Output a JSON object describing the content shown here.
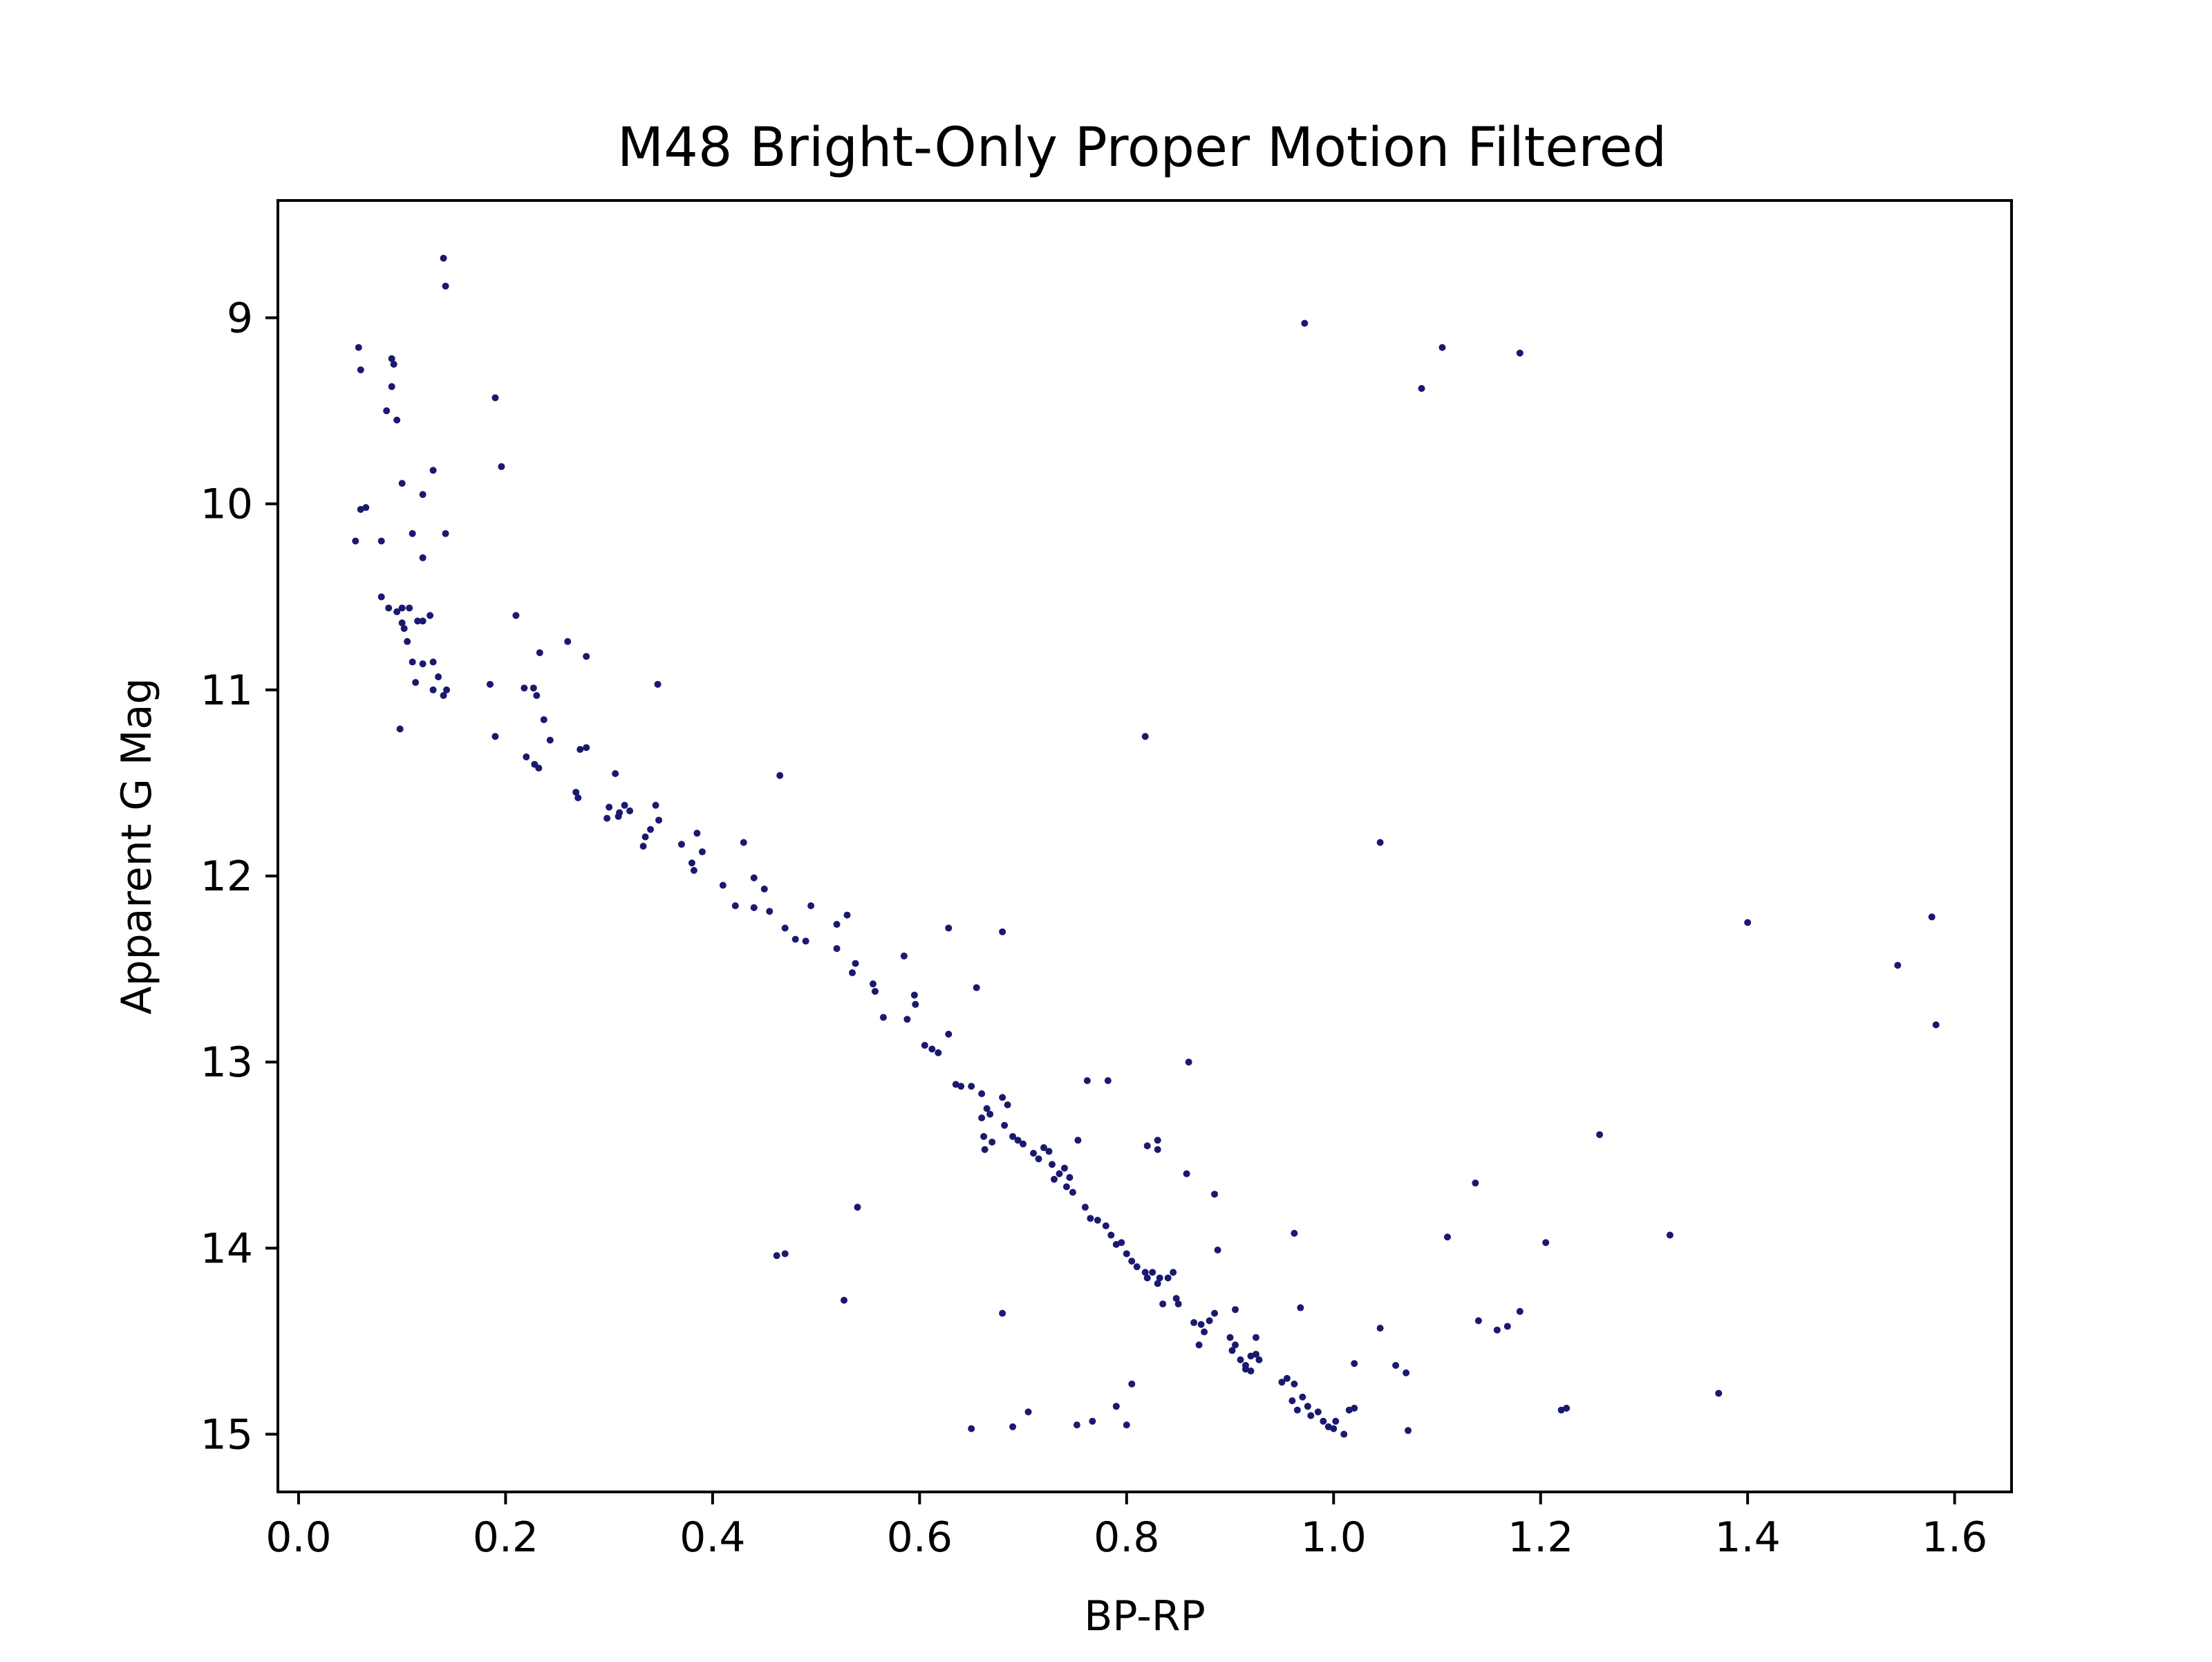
{
  "chart_data": {
    "type": "scatter",
    "title": "M48 Bright-Only Proper Motion Filtered",
    "xlabel": "BP-RP",
    "ylabel": "Apparent G Mag",
    "xlim": [
      -0.02,
      1.655
    ],
    "ylim": [
      15.31,
      8.37
    ],
    "y_inverted": true,
    "grid": false,
    "marker_color": "#191970",
    "x_ticks": [
      {
        "value": 0.0,
        "label": "0.0"
      },
      {
        "value": 0.2,
        "label": "0.2"
      },
      {
        "value": 0.4,
        "label": "0.4"
      },
      {
        "value": 0.6,
        "label": "0.6"
      },
      {
        "value": 0.8,
        "label": "0.8"
      },
      {
        "value": 1.0,
        "label": "1.0"
      },
      {
        "value": 1.2,
        "label": "1.2"
      },
      {
        "value": 1.4,
        "label": "1.4"
      },
      {
        "value": 1.6,
        "label": "1.6"
      }
    ],
    "y_ticks": [
      {
        "value": 9,
        "label": "9"
      },
      {
        "value": 10,
        "label": "10"
      },
      {
        "value": 11,
        "label": "11"
      },
      {
        "value": 12,
        "label": "12"
      },
      {
        "value": 13,
        "label": "13"
      },
      {
        "value": 14,
        "label": "14"
      },
      {
        "value": 15,
        "label": "15"
      }
    ],
    "points": [
      [
        0.14,
        8.68
      ],
      [
        0.142,
        8.83
      ],
      [
        0.058,
        9.16
      ],
      [
        0.09,
        9.22
      ],
      [
        0.092,
        9.25
      ],
      [
        0.06,
        9.28
      ],
      [
        0.09,
        9.37
      ],
      [
        0.19,
        9.43
      ],
      [
        0.085,
        9.5
      ],
      [
        0.095,
        9.55
      ],
      [
        0.196,
        9.8
      ],
      [
        0.13,
        9.82
      ],
      [
        0.1,
        9.89
      ],
      [
        0.12,
        9.95
      ],
      [
        0.065,
        10.02
      ],
      [
        0.06,
        10.03
      ],
      [
        0.11,
        10.16
      ],
      [
        0.142,
        10.16
      ],
      [
        0.055,
        10.2
      ],
      [
        0.08,
        10.2
      ],
      [
        0.12,
        10.29
      ],
      [
        0.08,
        10.5
      ],
      [
        0.087,
        10.56
      ],
      [
        0.1,
        10.56
      ],
      [
        0.107,
        10.56
      ],
      [
        0.095,
        10.58
      ],
      [
        0.127,
        10.6
      ],
      [
        0.1,
        10.64
      ],
      [
        0.115,
        10.63
      ],
      [
        0.12,
        10.63
      ],
      [
        0.102,
        10.67
      ],
      [
        0.105,
        10.74
      ],
      [
        0.11,
        10.85
      ],
      [
        0.12,
        10.86
      ],
      [
        0.13,
        10.85
      ],
      [
        0.135,
        10.93
      ],
      [
        0.113,
        10.96
      ],
      [
        0.13,
        11.0
      ],
      [
        0.14,
        11.03
      ],
      [
        0.143,
        11.0
      ],
      [
        0.098,
        11.21
      ],
      [
        0.21,
        10.6
      ],
      [
        0.26,
        10.74
      ],
      [
        0.233,
        10.8
      ],
      [
        0.278,
        10.82
      ],
      [
        0.185,
        10.97
      ],
      [
        0.218,
        10.99
      ],
      [
        0.227,
        10.99
      ],
      [
        0.23,
        11.03
      ],
      [
        0.347,
        10.97
      ],
      [
        0.237,
        11.16
      ],
      [
        0.19,
        11.25
      ],
      [
        0.243,
        11.27
      ],
      [
        0.22,
        11.36
      ],
      [
        0.228,
        11.4
      ],
      [
        0.232,
        11.42
      ],
      [
        0.278,
        11.31
      ],
      [
        0.272,
        11.32
      ],
      [
        0.306,
        11.45
      ],
      [
        0.268,
        11.55
      ],
      [
        0.27,
        11.58
      ],
      [
        0.3,
        11.63
      ],
      [
        0.31,
        11.66
      ],
      [
        0.315,
        11.62
      ],
      [
        0.32,
        11.65
      ],
      [
        0.298,
        11.69
      ],
      [
        0.309,
        11.68
      ],
      [
        0.345,
        11.62
      ],
      [
        0.348,
        11.7
      ],
      [
        0.34,
        11.75
      ],
      [
        0.335,
        11.79
      ],
      [
        0.333,
        11.84
      ],
      [
        0.37,
        11.83
      ],
      [
        0.385,
        11.77
      ],
      [
        0.38,
        11.93
      ],
      [
        0.382,
        11.97
      ],
      [
        0.39,
        11.87
      ],
      [
        0.43,
        11.82
      ],
      [
        0.465,
        11.46
      ],
      [
        0.41,
        12.05
      ],
      [
        0.44,
        12.01
      ],
      [
        0.45,
        12.07
      ],
      [
        0.422,
        12.16
      ],
      [
        0.44,
        12.17
      ],
      [
        0.455,
        12.19
      ],
      [
        0.47,
        12.28
      ],
      [
        0.48,
        12.34
      ],
      [
        0.49,
        12.35
      ],
      [
        0.495,
        12.16
      ],
      [
        0.52,
        12.26
      ],
      [
        0.53,
        12.21
      ],
      [
        0.52,
        12.39
      ],
      [
        0.538,
        12.47
      ],
      [
        0.535,
        12.52
      ],
      [
        0.555,
        12.58
      ],
      [
        0.557,
        12.62
      ],
      [
        0.565,
        12.76
      ],
      [
        0.585,
        12.43
      ],
      [
        0.595,
        12.64
      ],
      [
        0.596,
        12.69
      ],
      [
        0.588,
        12.77
      ],
      [
        0.628,
        12.28
      ],
      [
        0.655,
        12.6
      ],
      [
        0.628,
        12.85
      ],
      [
        0.605,
        12.91
      ],
      [
        0.612,
        12.93
      ],
      [
        0.618,
        12.95
      ],
      [
        0.635,
        13.12
      ],
      [
        0.64,
        13.13
      ],
      [
        0.65,
        13.13
      ],
      [
        0.68,
        12.3
      ],
      [
        0.66,
        13.17
      ],
      [
        0.665,
        13.25
      ],
      [
        0.668,
        13.28
      ],
      [
        0.66,
        13.3
      ],
      [
        0.662,
        13.4
      ],
      [
        0.663,
        13.47
      ],
      [
        0.67,
        13.43
      ],
      [
        0.68,
        13.19
      ],
      [
        0.685,
        13.23
      ],
      [
        0.682,
        13.34
      ],
      [
        0.69,
        13.4
      ],
      [
        0.695,
        13.42
      ],
      [
        0.7,
        13.44
      ],
      [
        0.71,
        13.49
      ],
      [
        0.715,
        13.52
      ],
      [
        0.72,
        13.46
      ],
      [
        0.725,
        13.48
      ],
      [
        0.728,
        13.55
      ],
      [
        0.735,
        13.6
      ],
      [
        0.73,
        13.63
      ],
      [
        0.74,
        13.57
      ],
      [
        0.745,
        13.62
      ],
      [
        0.742,
        13.67
      ],
      [
        0.748,
        13.7
      ],
      [
        0.753,
        13.42
      ],
      [
        0.762,
        13.1
      ],
      [
        0.782,
        13.1
      ],
      [
        0.76,
        13.78
      ],
      [
        0.765,
        13.84
      ],
      [
        0.772,
        13.85
      ],
      [
        0.78,
        13.88
      ],
      [
        0.785,
        13.93
      ],
      [
        0.79,
        13.98
      ],
      [
        0.795,
        13.97
      ],
      [
        0.8,
        14.03
      ],
      [
        0.805,
        14.07
      ],
      [
        0.81,
        14.1
      ],
      [
        0.818,
        14.13
      ],
      [
        0.82,
        14.16
      ],
      [
        0.825,
        14.13
      ],
      [
        0.83,
        14.19
      ],
      [
        0.832,
        14.16
      ],
      [
        0.84,
        14.16
      ],
      [
        0.845,
        14.13
      ],
      [
        0.835,
        14.3
      ],
      [
        0.848,
        14.27
      ],
      [
        0.85,
        14.3
      ],
      [
        0.818,
        11.25
      ],
      [
        0.82,
        13.45
      ],
      [
        0.83,
        13.47
      ],
      [
        0.83,
        13.42
      ],
      [
        0.858,
        13.6
      ],
      [
        0.86,
        13.0
      ],
      [
        0.885,
        13.71
      ],
      [
        0.888,
        14.01
      ],
      [
        0.865,
        14.4
      ],
      [
        0.872,
        14.41
      ],
      [
        0.875,
        14.45
      ],
      [
        0.88,
        14.39
      ],
      [
        0.87,
        14.52
      ],
      [
        0.885,
        14.35
      ],
      [
        0.9,
        14.48
      ],
      [
        0.905,
        14.33
      ],
      [
        0.902,
        14.55
      ],
      [
        0.905,
        14.52
      ],
      [
        0.91,
        14.6
      ],
      [
        0.915,
        14.63
      ],
      [
        0.92,
        14.58
      ],
      [
        0.915,
        14.65
      ],
      [
        0.925,
        14.57
      ],
      [
        0.925,
        14.48
      ],
      [
        0.92,
        14.66
      ],
      [
        0.928,
        14.6
      ],
      [
        0.95,
        14.72
      ],
      [
        0.955,
        14.7
      ],
      [
        0.962,
        14.73
      ],
      [
        0.96,
        14.82
      ],
      [
        0.97,
        14.8
      ],
      [
        0.965,
        14.87
      ],
      [
        0.975,
        14.85
      ],
      [
        0.978,
        14.9
      ],
      [
        0.985,
        14.88
      ],
      [
        0.99,
        14.93
      ],
      [
        0.995,
        14.96
      ],
      [
        1.0,
        14.97
      ],
      [
        1.002,
        14.93
      ],
      [
        1.01,
        15.0
      ],
      [
        1.015,
        14.87
      ],
      [
        1.02,
        14.86
      ],
      [
        0.962,
        13.92
      ],
      [
        0.968,
        14.32
      ],
      [
        0.972,
        9.03
      ],
      [
        1.045,
        11.82
      ],
      [
        1.085,
        9.38
      ],
      [
        1.105,
        9.16
      ],
      [
        1.18,
        9.19
      ],
      [
        1.02,
        14.62
      ],
      [
        1.045,
        14.43
      ],
      [
        1.06,
        14.63
      ],
      [
        1.07,
        14.67
      ],
      [
        1.072,
        14.98
      ],
      [
        1.11,
        13.94
      ],
      [
        1.137,
        13.65
      ],
      [
        1.14,
        14.39
      ],
      [
        1.158,
        14.44
      ],
      [
        1.168,
        14.42
      ],
      [
        1.18,
        14.34
      ],
      [
        1.205,
        13.97
      ],
      [
        1.22,
        14.87
      ],
      [
        1.225,
        14.86
      ],
      [
        1.257,
        13.39
      ],
      [
        1.325,
        13.93
      ],
      [
        1.372,
        14.78
      ],
      [
        1.4,
        12.25
      ],
      [
        1.545,
        12.48
      ],
      [
        1.578,
        12.22
      ],
      [
        1.582,
        12.8
      ],
      [
        0.54,
        13.78
      ],
      [
        0.462,
        14.04
      ],
      [
        0.47,
        14.03
      ],
      [
        0.527,
        14.28
      ],
      [
        0.68,
        14.35
      ],
      [
        0.65,
        14.97
      ],
      [
        0.69,
        14.96
      ],
      [
        0.705,
        14.88
      ],
      [
        0.752,
        14.95
      ],
      [
        0.767,
        14.93
      ],
      [
        0.79,
        14.85
      ],
      [
        0.8,
        14.95
      ],
      [
        0.805,
        14.73
      ]
    ]
  }
}
